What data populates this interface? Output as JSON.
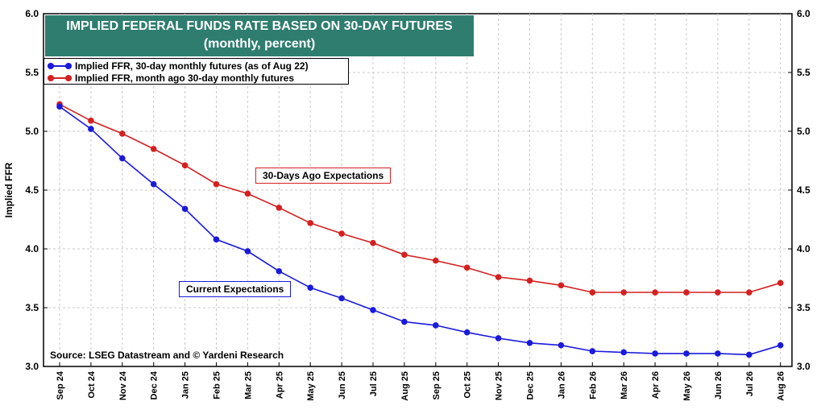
{
  "title_line1": "IMPLIED FEDERAL FUNDS RATE BASED ON 30-DAY FUTURES",
  "title_line2": "(monthly, percent)",
  "source": "Source: LSEG Datastream and © Yardeni Research",
  "annotations": {
    "month_ago": "30-Days Ago Expectations",
    "current": "Current Expectations"
  },
  "colors": {
    "title_bg": "#2e7d6f",
    "current": "#1a1adb",
    "month_ago": "#d42020",
    "grid": "#c8c8c8"
  },
  "chart_data": {
    "type": "line",
    "title": "IMPLIED FEDERAL FUNDS RATE BASED ON 30-DAY FUTURES",
    "subtitle": "(monthly, percent)",
    "xlabel": "",
    "ylabel": "Implied FFR",
    "ylim": [
      3.0,
      6.0
    ],
    "y_ticks": [
      "3.0",
      "3.5",
      "4.0",
      "4.5",
      "5.0",
      "5.5",
      "6.0"
    ],
    "grid": true,
    "legend_position": "top-left",
    "categories": [
      "Sep 24",
      "Oct 24",
      "Nov 24",
      "Dec 24",
      "Jan 25",
      "Feb 25",
      "Mar 25",
      "Apr 25",
      "May 25",
      "Jun 25",
      "Jul 25",
      "Aug 25",
      "Sep 25",
      "Oct 25",
      "Nov 25",
      "Dec 25",
      "Jan 26",
      "Feb 26",
      "Mar 26",
      "Apr 26",
      "May 26",
      "Jun 26",
      "Jul 26",
      "Aug 26"
    ],
    "series": [
      {
        "name": "Implied FFR, 30-day monthly futures (as of Aug 22)",
        "color": "#1a1adb",
        "values": [
          5.21,
          5.02,
          4.77,
          4.55,
          4.34,
          4.08,
          3.98,
          3.81,
          3.67,
          3.58,
          3.48,
          3.38,
          3.35,
          3.29,
          3.24,
          3.2,
          3.18,
          3.13,
          3.12,
          3.11,
          3.11,
          3.11,
          3.1,
          3.18
        ]
      },
      {
        "name": "Implied FFR, month ago 30-day monthly futures",
        "color": "#d42020",
        "values": [
          5.23,
          5.09,
          4.98,
          4.85,
          4.71,
          4.55,
          4.47,
          4.35,
          4.22,
          4.13,
          4.05,
          3.95,
          3.9,
          3.84,
          3.76,
          3.73,
          3.69,
          3.63,
          3.63,
          3.63,
          3.63,
          3.63,
          3.63,
          3.71
        ]
      }
    ]
  }
}
